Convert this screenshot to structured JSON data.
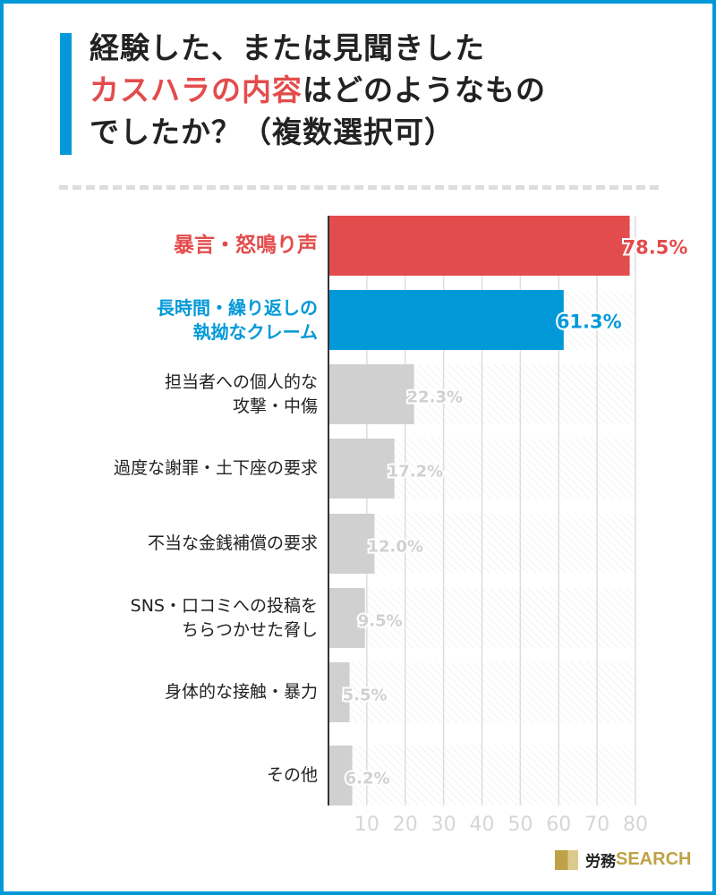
{
  "title": {
    "line1": "経験した、または見聞きした",
    "line2_highlight": "カスハラの内容",
    "line2_rest": "はどのようなもの",
    "line3": "でしたか？（複数選択可）"
  },
  "chart_data": {
    "type": "bar",
    "orientation": "horizontal",
    "categories": [
      "暴言・怒鳴り声",
      "長時間・繰り返しの\n執拗なクレーム",
      "担当者への個人的な\n攻撃・中傷",
      "過度な謝罪・土下座の要求",
      "不当な金銭補償の要求",
      "SNS・口コミへの投稿を\nちらつかせた脅し",
      "身体的な接触・暴力",
      "その他"
    ],
    "values": [
      78.5,
      61.3,
      22.3,
      17.2,
      12.0,
      9.5,
      5.5,
      6.2
    ],
    "value_labels": [
      "78.5%",
      "61.3%",
      "22.3%",
      "17.2%",
      "12.0%",
      "9.5%",
      "5.5%",
      "6.2%"
    ],
    "colors": [
      "#e34c4c",
      "#0399d9",
      "#d0d0d0",
      "#d0d0d0",
      "#d0d0d0",
      "#d0d0d0",
      "#d0d0d0",
      "#d0d0d0"
    ],
    "label_colors": [
      "#e34c4c",
      "#0399d9",
      "#222222",
      "#222222",
      "#222222",
      "#222222",
      "#222222",
      "#222222"
    ],
    "xticks": [
      "10",
      "20",
      "30",
      "40",
      "50",
      "60",
      "70",
      "80"
    ],
    "xlim": [
      0,
      80
    ],
    "grid": true,
    "xlabel": "",
    "ylabel": ""
  },
  "logo": {
    "jp": "労務",
    "en": "SEARCH"
  }
}
